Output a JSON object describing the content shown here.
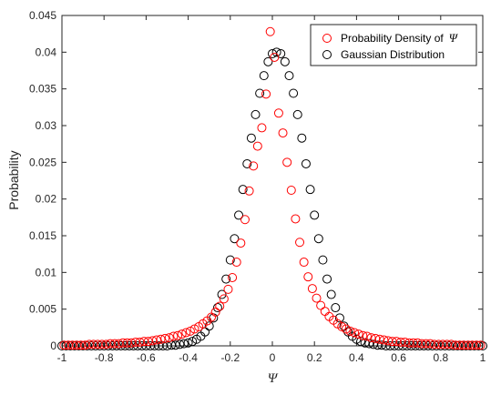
{
  "chart_data": {
    "type": "scatter",
    "xlabel": "Ψ",
    "ylabel": "Probability",
    "xlim": [
      -1,
      1
    ],
    "ylim": [
      0,
      0.045
    ],
    "xticks": [
      "-1",
      "-0.8",
      "-0.6",
      "-0.4",
      "-0.2",
      "0",
      "0.2",
      "0.4",
      "0.6",
      "0.8",
      "1"
    ],
    "yticks": [
      "0",
      "0.005",
      "0.01",
      "0.015",
      "0.02",
      "0.025",
      "0.03",
      "0.035",
      "0.04",
      "0.045"
    ],
    "legend_position": "top-right",
    "grid": false,
    "series": [
      {
        "name": "Probability Density of",
        "name_symbol": "Ψ",
        "color": "#ff0000",
        "marker": "open-circle",
        "x": [
          -0.99,
          -0.97,
          -0.95,
          -0.93,
          -0.91,
          -0.89,
          -0.87,
          -0.85,
          -0.83,
          -0.81,
          -0.79,
          -0.77,
          -0.75,
          -0.73,
          -0.71,
          -0.69,
          -0.67,
          -0.65,
          -0.63,
          -0.61,
          -0.59,
          -0.57,
          -0.55,
          -0.53,
          -0.51,
          -0.49,
          -0.47,
          -0.45,
          -0.43,
          -0.41,
          -0.39,
          -0.37,
          -0.35,
          -0.33,
          -0.31,
          -0.29,
          -0.27,
          -0.25,
          -0.23,
          -0.21,
          -0.19,
          -0.17,
          -0.15,
          -0.13,
          -0.11,
          -0.09,
          -0.07,
          -0.05,
          -0.03,
          -0.01,
          0.01,
          0.03,
          0.05,
          0.07,
          0.09,
          0.11,
          0.13,
          0.15,
          0.17,
          0.19,
          0.21,
          0.23,
          0.25,
          0.27,
          0.29,
          0.31,
          0.33,
          0.35,
          0.37,
          0.39,
          0.41,
          0.43,
          0.45,
          0.47,
          0.49,
          0.51,
          0.53,
          0.55,
          0.57,
          0.59,
          0.61,
          0.63,
          0.65,
          0.67,
          0.69,
          0.71,
          0.73,
          0.75,
          0.77,
          0.79,
          0.81,
          0.83,
          0.85,
          0.87,
          0.89,
          0.91,
          0.93,
          0.95,
          0.97,
          0.99
        ],
        "y": [
          0.0001,
          0.0001,
          0.0001,
          0.0001,
          0.0001,
          0.0001,
          0.0002,
          0.0002,
          0.0002,
          0.0002,
          0.0002,
          0.0003,
          0.0003,
          0.0003,
          0.0004,
          0.0004,
          0.0004,
          0.0005,
          0.0005,
          0.0006,
          0.0006,
          0.0007,
          0.0008,
          0.0009,
          0.001,
          0.0011,
          0.0013,
          0.0014,
          0.0016,
          0.0018,
          0.002,
          0.0023,
          0.0026,
          0.003,
          0.0034,
          0.0039,
          0.0046,
          0.0054,
          0.0064,
          0.0077,
          0.0093,
          0.0114,
          0.014,
          0.0172,
          0.0211,
          0.0245,
          0.0272,
          0.0297,
          0.0343,
          0.0428,
          0.0393,
          0.0317,
          0.029,
          0.025,
          0.0212,
          0.0173,
          0.0141,
          0.0114,
          0.0094,
          0.0078,
          0.0065,
          0.0055,
          0.0047,
          0.004,
          0.0035,
          0.003,
          0.0026,
          0.0023,
          0.002,
          0.0018,
          0.0016,
          0.0014,
          0.0013,
          0.0011,
          0.001,
          0.0009,
          0.0008,
          0.0007,
          0.0006,
          0.0006,
          0.0005,
          0.0005,
          0.0004,
          0.0004,
          0.0004,
          0.0003,
          0.0003,
          0.0003,
          0.0002,
          0.0002,
          0.0002,
          0.0002,
          0.0002,
          0.0001,
          0.0001,
          0.0001,
          0.0001,
          0.0001,
          0.0001,
          0.0001
        ]
      },
      {
        "name": "Gaussian Distribution",
        "color": "#000000",
        "marker": "open-circle",
        "x": [
          -1.0,
          -0.98,
          -0.96,
          -0.94,
          -0.92,
          -0.9,
          -0.88,
          -0.86,
          -0.84,
          -0.82,
          -0.8,
          -0.78,
          -0.76,
          -0.74,
          -0.72,
          -0.7,
          -0.68,
          -0.66,
          -0.64,
          -0.62,
          -0.6,
          -0.58,
          -0.56,
          -0.54,
          -0.52,
          -0.5,
          -0.48,
          -0.46,
          -0.44,
          -0.42,
          -0.4,
          -0.38,
          -0.36,
          -0.34,
          -0.32,
          -0.3,
          -0.28,
          -0.26,
          -0.24,
          -0.22,
          -0.2,
          -0.18,
          -0.16,
          -0.14,
          -0.12,
          -0.1,
          -0.08,
          -0.06,
          -0.04,
          -0.02,
          0.0,
          0.02,
          0.04,
          0.06,
          0.08,
          0.1,
          0.12,
          0.14,
          0.16,
          0.18,
          0.2,
          0.22,
          0.24,
          0.26,
          0.28,
          0.3,
          0.32,
          0.34,
          0.36,
          0.38,
          0.4,
          0.42,
          0.44,
          0.46,
          0.48,
          0.5,
          0.52,
          0.54,
          0.56,
          0.58,
          0.6,
          0.62,
          0.64,
          0.66,
          0.68,
          0.7,
          0.72,
          0.74,
          0.76,
          0.78,
          0.8,
          0.82,
          0.84,
          0.86,
          0.88,
          0.9,
          0.92,
          0.94,
          0.96,
          0.98,
          1.0
        ],
        "y": [
          0.0,
          0.0,
          0.0,
          0.0,
          0.0,
          0.0,
          0.0,
          0.0,
          0.0,
          0.0,
          0.0,
          0.0,
          0.0,
          0.0,
          0.0,
          0.0,
          0.0,
          0.0,
          0.0,
          0.0,
          0.0,
          0.0,
          0.0,
          0.0,
          0.0,
          0.0,
          0.0001,
          0.0001,
          0.0002,
          0.0003,
          0.0004,
          0.0006,
          0.0009,
          0.0013,
          0.0019,
          0.0027,
          0.0038,
          0.0052,
          0.007,
          0.0091,
          0.0117,
          0.0146,
          0.0178,
          0.0213,
          0.0248,
          0.0283,
          0.0315,
          0.0344,
          0.0368,
          0.0387,
          0.0398,
          0.04,
          0.0398,
          0.0387,
          0.0368,
          0.0344,
          0.0315,
          0.0283,
          0.0248,
          0.0213,
          0.0178,
          0.0146,
          0.0117,
          0.0091,
          0.007,
          0.0052,
          0.0038,
          0.0027,
          0.0019,
          0.0013,
          0.0009,
          0.0006,
          0.0004,
          0.0003,
          0.0002,
          0.0001,
          0.0001,
          0.0,
          0.0,
          0.0,
          0.0,
          0.0,
          0.0,
          0.0,
          0.0,
          0.0,
          0.0,
          0.0,
          0.0,
          0.0,
          0.0,
          0.0,
          0.0,
          0.0,
          0.0,
          0.0,
          0.0,
          0.0,
          0.0,
          0.0,
          0.0
        ]
      }
    ]
  }
}
